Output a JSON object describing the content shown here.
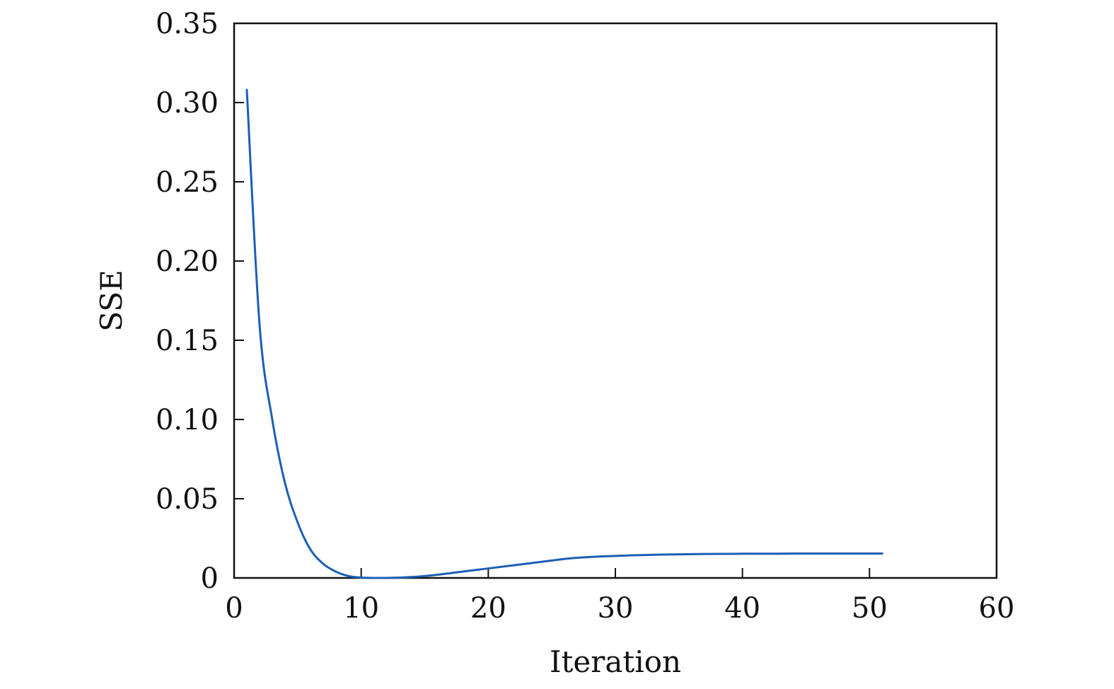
{
  "chart_data": {
    "type": "line",
    "xlabel": "Iteration",
    "ylabel": "SSE",
    "xlim": [
      0,
      60
    ],
    "ylim": [
      0,
      0.35
    ],
    "x_ticks": [
      "0",
      "10",
      "20",
      "30",
      "40",
      "50",
      "60"
    ],
    "y_ticks": [
      "0",
      "0.05",
      "0.10",
      "0.15",
      "0.20",
      "0.25",
      "0.30",
      "0.35"
    ],
    "grid": false,
    "series": [
      {
        "color": "#1a5fb4",
        "x": [
          1,
          2,
          3,
          4,
          5,
          6,
          7,
          8,
          9,
          10,
          11,
          12,
          13,
          14,
          15,
          16,
          17,
          18,
          19,
          20,
          21,
          22,
          23,
          24,
          25,
          26,
          27,
          28,
          29,
          30,
          31,
          32,
          33,
          34,
          35,
          36,
          37,
          38,
          39,
          40,
          41,
          42,
          43,
          44,
          45,
          46,
          47,
          48,
          49,
          50,
          51
        ],
        "y": [
          0.308,
          0.16,
          0.1,
          0.06,
          0.035,
          0.018,
          0.009,
          0.004,
          0.0012,
          0.0002,
          0.0,
          0.0,
          0.0002,
          0.0006,
          0.0012,
          0.002,
          0.003,
          0.004,
          0.005,
          0.006,
          0.007,
          0.008,
          0.009,
          0.01,
          0.011,
          0.012,
          0.0127,
          0.0132,
          0.0136,
          0.0139,
          0.0142,
          0.0144,
          0.0146,
          0.0148,
          0.0149,
          0.015,
          0.0151,
          0.0152,
          0.0152,
          0.0153,
          0.0153,
          0.0153,
          0.0153,
          0.0154,
          0.0154,
          0.0154,
          0.0154,
          0.0154,
          0.0154,
          0.0154,
          0.0154
        ]
      }
    ]
  }
}
